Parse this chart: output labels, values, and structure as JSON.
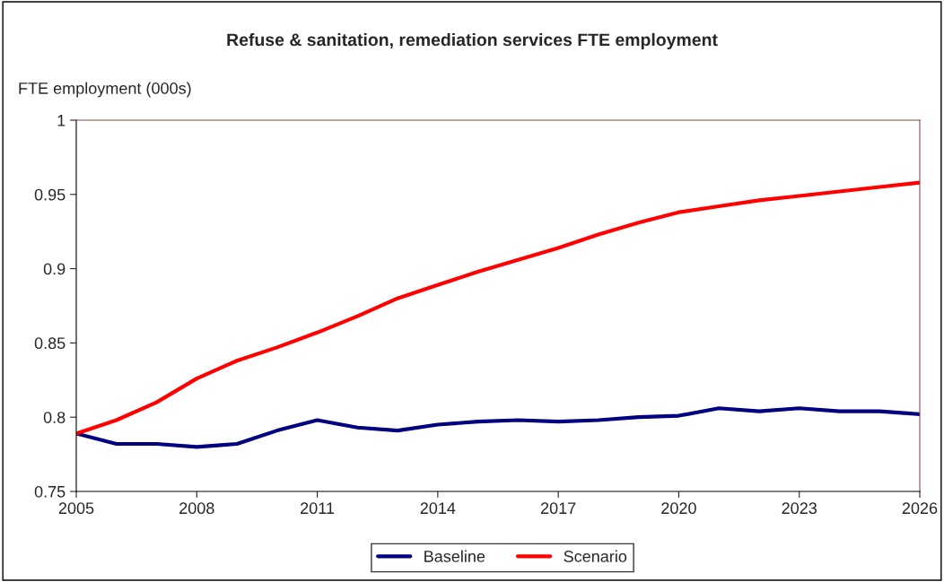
{
  "chart_data": {
    "type": "line",
    "title": "Refuse & sanitation, remediation services FTE employment",
    "ylabel": "FTE employment (000s)",
    "x": [
      2005,
      2006,
      2007,
      2008,
      2009,
      2010,
      2011,
      2012,
      2013,
      2014,
      2015,
      2016,
      2017,
      2018,
      2019,
      2020,
      2021,
      2022,
      2023,
      2024,
      2025,
      2026
    ],
    "series": [
      {
        "name": "Baseline",
        "color": "#000080",
        "values": [
          0.789,
          0.782,
          0.782,
          0.78,
          0.782,
          0.791,
          0.798,
          0.793,
          0.791,
          0.795,
          0.797,
          0.798,
          0.797,
          0.798,
          0.8,
          0.801,
          0.806,
          0.804,
          0.806,
          0.804,
          0.804,
          0.802
        ]
      },
      {
        "name": "Scenario",
        "color": "#ff0000",
        "values": [
          0.789,
          0.798,
          0.81,
          0.826,
          0.838,
          0.847,
          0.857,
          0.868,
          0.88,
          0.889,
          0.898,
          0.906,
          0.914,
          0.923,
          0.931,
          0.938,
          0.942,
          0.946,
          0.949,
          0.952,
          0.955,
          0.958
        ]
      }
    ],
    "xlim": [
      2005,
      2026
    ],
    "xticks": [
      2005,
      2008,
      2011,
      2014,
      2017,
      2020,
      2023,
      2026
    ],
    "ylim": [
      0.75,
      1
    ],
    "yticks": [
      {
        "value": 0.75,
        "label": "0.75"
      },
      {
        "value": 0.8,
        "label": "0.8"
      },
      {
        "value": 0.85,
        "label": "0.85"
      },
      {
        "value": 0.9,
        "label": "0.9"
      },
      {
        "value": 0.95,
        "label": "0.95"
      },
      {
        "value": 1,
        "label": "1"
      }
    ],
    "grid": false,
    "legend": "bottom",
    "marker": "none",
    "line_style": "solid"
  }
}
